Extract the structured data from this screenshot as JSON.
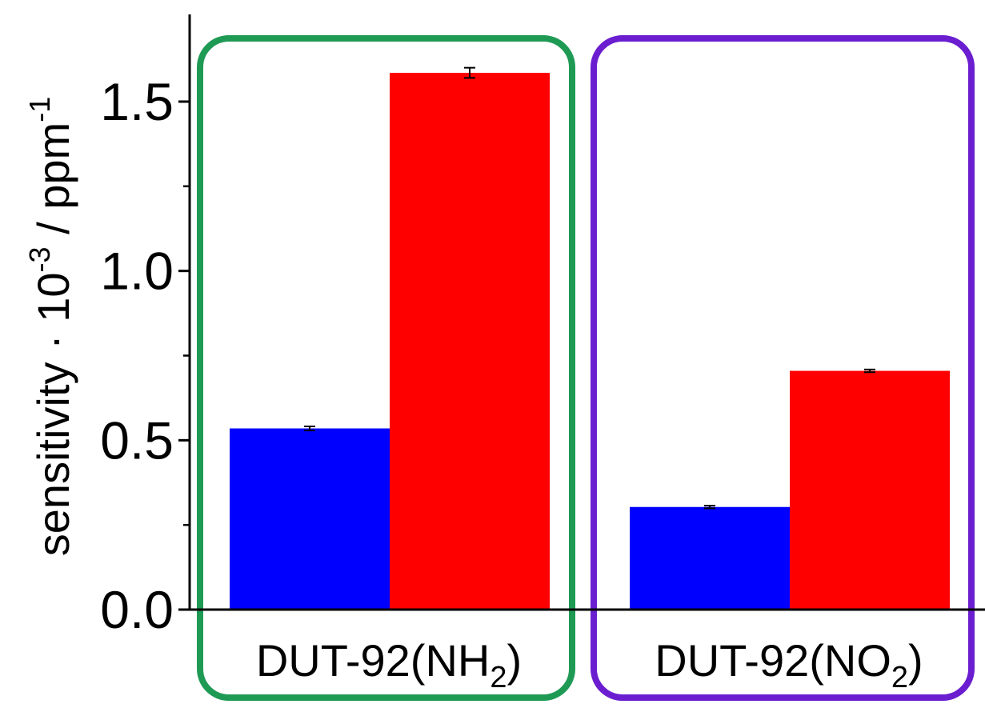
{
  "chart_data": {
    "type": "bar",
    "title": "",
    "ylabel": {
      "prefix": "sensitivity · 10",
      "exp1": "-3",
      "mid": " / ppm",
      "exp2": "-1"
    },
    "xlabel": "",
    "ylim": [
      0,
      1.75
    ],
    "yticks": [
      0.0,
      0.5,
      1.0,
      1.5
    ],
    "ytick_labels": [
      "0.0",
      "0.5",
      "1.0",
      "1.5"
    ],
    "yminor_ticks": [
      0.25,
      0.75,
      1.25
    ],
    "grid": false,
    "legend": "none",
    "categories": [
      {
        "base": "DUT-92(NH",
        "sub": "2",
        "tail": ")"
      },
      {
        "base": "DUT-92(NO",
        "sub": "2",
        "tail": ")"
      }
    ],
    "series": [
      {
        "color": "#0000ff",
        "values": [
          0.535,
          0.303
        ],
        "errors": [
          0.006,
          0.004
        ]
      },
      {
        "color": "#ff0000",
        "values": [
          1.585,
          0.705
        ],
        "errors": [
          0.015,
          0.004
        ]
      }
    ],
    "group_boxes": [
      {
        "color": "#1f9a55"
      },
      {
        "color": "#6a1ed0"
      }
    ]
  }
}
